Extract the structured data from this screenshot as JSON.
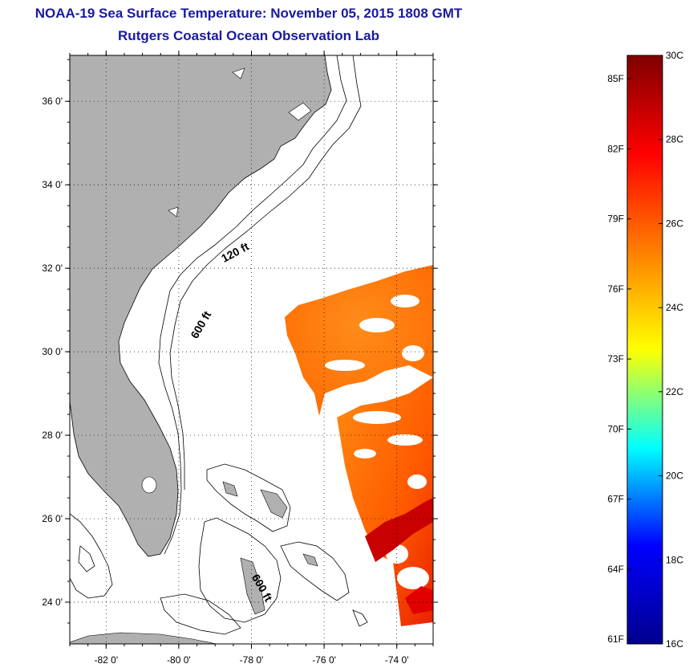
{
  "title": {
    "line1": "NOAA-19 Sea Surface Temperature:  November 05, 2015 1808 GMT",
    "line2": "Rutgers Coastal Ocean Observation Lab"
  },
  "map": {
    "lat_ticks": [
      {
        "value": 24,
        "label": "24 0'"
      },
      {
        "value": 26,
        "label": "26 0'"
      },
      {
        "value": 28,
        "label": "28 0'"
      },
      {
        "value": 30,
        "label": "30 0'"
      },
      {
        "value": 32,
        "label": "32 0'"
      },
      {
        "value": 34,
        "label": "34 0'"
      },
      {
        "value": 36,
        "label": "36 0'"
      }
    ],
    "lon_ticks": [
      {
        "value": -82,
        "label": "-82 0'"
      },
      {
        "value": -80,
        "label": "-80 0'"
      },
      {
        "value": -78,
        "label": "-78 0'"
      },
      {
        "value": -76,
        "label": "-76 0'"
      },
      {
        "value": -74,
        "label": "-74 0'"
      }
    ],
    "lon_range": [
      -83.0,
      -73.0
    ],
    "lat_range": [
      23.0,
      37.1
    ],
    "isobath_labels": [
      {
        "text": "120 ft",
        "lon": -78.4,
        "lat": 32.3
      },
      {
        "text": "600 ft",
        "lon": -79.3,
        "lat": 30.6
      },
      {
        "text": "600 ft",
        "lon": -77.8,
        "lat": 24.3
      }
    ],
    "land_color": "#b0b0b0"
  },
  "colorbar": {
    "min_c": 16,
    "max_c": 30,
    "celsius_labels": [
      {
        "value": 30,
        "label": "30C"
      },
      {
        "value": 28,
        "label": "28C"
      },
      {
        "value": 26,
        "label": "26C"
      },
      {
        "value": 24,
        "label": "24C"
      },
      {
        "value": 22,
        "label": "22C"
      },
      {
        "value": 20,
        "label": "20C"
      },
      {
        "value": 18,
        "label": "18C"
      },
      {
        "value": 16,
        "label": "16C"
      }
    ],
    "fahrenheit_labels": [
      {
        "value": 85,
        "label": "85F"
      },
      {
        "value": 82,
        "label": "82F"
      },
      {
        "value": 79,
        "label": "79F"
      },
      {
        "value": 76,
        "label": "76F"
      },
      {
        "value": 73,
        "label": "73F"
      },
      {
        "value": 70,
        "label": "70F"
      },
      {
        "value": 67,
        "label": "67F"
      },
      {
        "value": 64,
        "label": "64F"
      },
      {
        "value": 61,
        "label": "61F"
      }
    ],
    "colors": [
      "#00008f",
      "#0000ff",
      "#00ffff",
      "#ffff00",
      "#ff7f00",
      "#ff0000",
      "#7f0000"
    ]
  }
}
